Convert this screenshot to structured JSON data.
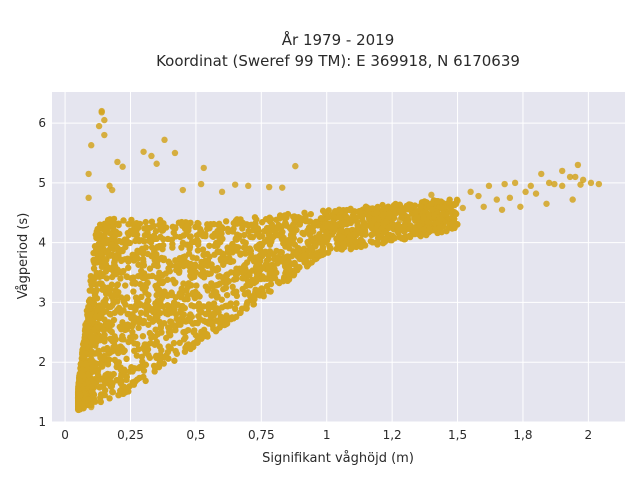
{
  "chart_data": {
    "type": "scatter",
    "title_line1": "År 1979 - 2019",
    "title_line2": "Koordinat (Sweref 99 TM): E 369918, N 6170639",
    "xlabel": "Signifikant våghöjd (m)",
    "ylabel": "Vågperiod (s)",
    "xlim": [
      -0.05,
      2.14
    ],
    "ylim": [
      1.0,
      6.52
    ],
    "grid": true,
    "x_ticks": [
      0,
      0.25,
      0.5,
      0.75,
      1,
      1.25,
      1.5,
      1.75,
      2
    ],
    "x_tick_labels": [
      "0",
      "0,25",
      "0,5",
      "0,75",
      "1",
      "1,2",
      "1,5",
      "1,8",
      "2"
    ],
    "y_ticks": [
      1,
      2,
      3,
      4,
      5,
      6
    ],
    "y_tick_labels": [
      "1",
      "2",
      "3",
      "4",
      "5",
      "6"
    ],
    "colors": {
      "marker": "#d4a520",
      "plot_bg": "#e5e5ef",
      "grid": "#ffffff"
    },
    "series": [
      {
        "points": [
          [
            0.14,
            6.2
          ],
          [
            0.14,
            6.18
          ],
          [
            0.15,
            6.05
          ],
          [
            0.13,
            5.95
          ],
          [
            0.15,
            5.8
          ],
          [
            0.1,
            5.63
          ],
          [
            0.38,
            5.72
          ],
          [
            0.3,
            5.52
          ],
          [
            0.33,
            5.45
          ],
          [
            0.42,
            5.5
          ],
          [
            0.35,
            5.32
          ],
          [
            0.2,
            5.35
          ],
          [
            0.22,
            5.27
          ],
          [
            0.53,
            5.25
          ],
          [
            0.88,
            5.28
          ],
          [
            0.09,
            5.15
          ],
          [
            0.17,
            4.95
          ],
          [
            0.18,
            4.88
          ],
          [
            0.65,
            4.97
          ],
          [
            0.7,
            4.95
          ],
          [
            0.78,
            4.93
          ],
          [
            0.83,
            4.92
          ],
          [
            0.52,
            4.98
          ],
          [
            0.6,
            4.85
          ],
          [
            0.09,
            4.75
          ],
          [
            0.45,
            4.88
          ],
          [
            1.5,
            4.7
          ],
          [
            1.55,
            4.85
          ],
          [
            1.62,
            4.95
          ],
          [
            1.68,
            4.98
          ],
          [
            1.72,
            5.0
          ],
          [
            1.78,
            4.95
          ],
          [
            1.85,
            5.0
          ],
          [
            1.82,
            5.15
          ],
          [
            1.9,
            4.95
          ],
          [
            1.95,
            5.1
          ],
          [
            1.98,
            5.05
          ],
          [
            1.9,
            5.2
          ],
          [
            1.93,
            5.1
          ],
          [
            1.96,
            5.3
          ],
          [
            1.97,
            4.97
          ],
          [
            1.94,
            4.72
          ],
          [
            2.01,
            5.0
          ],
          [
            2.04,
            4.98
          ],
          [
            1.87,
            4.98
          ],
          [
            1.76,
            4.85
          ],
          [
            1.8,
            4.82
          ],
          [
            1.84,
            4.65
          ],
          [
            1.7,
            4.75
          ],
          [
            1.74,
            4.6
          ],
          [
            1.65,
            4.72
          ],
          [
            1.6,
            4.6
          ],
          [
            1.67,
            4.55
          ],
          [
            1.58,
            4.78
          ],
          [
            1.52,
            4.58
          ],
          [
            1.45,
            4.58
          ],
          [
            1.42,
            4.66
          ],
          [
            1.4,
            4.8
          ],
          [
            1.38,
            4.5
          ],
          [
            1.35,
            4.45
          ],
          [
            1.32,
            4.42
          ],
          [
            1.3,
            4.55
          ],
          [
            1.28,
            4.38
          ],
          [
            1.26,
            4.28
          ],
          [
            1.25,
            4.5
          ],
          [
            1.22,
            4.4
          ],
          [
            0.05,
            1.5
          ],
          [
            0.06,
            1.42
          ],
          [
            0.08,
            1.35
          ],
          [
            0.1,
            1.28
          ],
          [
            0.1,
            1.25
          ]
        ]
      }
    ]
  }
}
